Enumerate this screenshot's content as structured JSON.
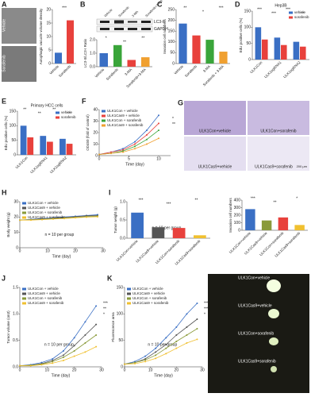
{
  "chart_data": [
    {
      "panel": "A",
      "type": "bar",
      "categories": [
        "Vehicle",
        "Sorafenib"
      ],
      "values": [
        4,
        16
      ],
      "colors": [
        "#3a6fc4",
        "#e8413c"
      ],
      "ylabel": "Autophagic vacuole volume density",
      "ylim": [
        0,
        20
      ],
      "yticks": [
        0,
        5,
        10,
        15,
        20
      ],
      "annotations": [
        "***"
      ]
    },
    {
      "panel": "B",
      "type": "bar",
      "categories": [
        "Vehicle",
        "Sorafenib",
        "3-MA",
        "Sorafenib+3-MA"
      ],
      "values": [
        1.0,
        1.6,
        0.5,
        0.7
      ],
      "colors": [
        "#3a6fc4",
        "#3aa53a",
        "#e8413c",
        "#f0a030"
      ],
      "ylabel": "LC3-II/LC3-I Ratio",
      "ylim": [
        0,
        2
      ],
      "yticks": [
        {
          "value": 0,
          "label": "0.0"
        },
        {
          "value": 1,
          "label": "1.0"
        },
        {
          "value": 2,
          "label": "2.0"
        }
      ],
      "annotations": [
        "*",
        "**",
        "**"
      ]
    },
    {
      "panel": "C",
      "type": "bar",
      "categories": [
        "Vehicle",
        "Sorafenib",
        "3-MA",
        "Sorafenib + 3-MA"
      ],
      "values": [
        185,
        130,
        110,
        55
      ],
      "colors": [
        "#3a6fc4",
        "#e8413c",
        "#3aa53a",
        "#f0a030"
      ],
      "ylabel": "Invasion cell numbers",
      "ylim": [
        0,
        250
      ],
      "yticks": [
        0,
        50,
        100,
        150,
        200,
        250
      ],
      "annotations": [
        "**",
        "*",
        "***"
      ]
    },
    {
      "panel": "D",
      "type": "grouped_bar",
      "title": "Hep3B",
      "categories": [
        "ULK1Con",
        "ULK1sgRNA1",
        "ULK1sgRNA2"
      ],
      "series": [
        {
          "name": "vehicle",
          "color": "#3a6fc4",
          "values": [
            100,
            68,
            55
          ]
        },
        {
          "name": "sorafenib",
          "color": "#e8413c",
          "values": [
            62,
            45,
            40
          ]
        }
      ],
      "ylabel": "EdU positive cells (%)",
      "ylim": [
        0,
        150
      ],
      "yticks": [
        0,
        50,
        100,
        150
      ],
      "legend": "upper right",
      "annotations": [
        "***",
        "***",
        "***",
        "**"
      ]
    },
    {
      "panel": "E",
      "type": "grouped_bar",
      "title": "Primary HCC cells",
      "categories": [
        "ULK1Con",
        "ULK1sgRNA1",
        "ULK1sgRNA2"
      ],
      "series": [
        {
          "name": "vehicle",
          "color": "#3a6fc4",
          "values": [
            100,
            65,
            55
          ]
        },
        {
          "name": "sorafenib",
          "color": "#e8413c",
          "values": [
            60,
            45,
            38
          ]
        }
      ],
      "ylabel": "EdU positive cells (%)",
      "ylim": [
        0,
        150
      ],
      "yticks": [
        0,
        50,
        100,
        150
      ],
      "legend": "upper right",
      "annotations": [
        "**",
        "**",
        "**",
        "**"
      ]
    },
    {
      "panel": "F",
      "type": "line",
      "x": [
        0,
        2,
        4,
        6,
        8,
        10
      ],
      "series": [
        {
          "name": "ULK1Con + vehicle",
          "color": "#3a6fc4",
          "values": [
            1,
            3,
            6,
            12,
            22,
            35
          ]
        },
        {
          "name": "ULK1Cas9 + vehicle",
          "color": "#e8413c",
          "values": [
            1,
            3,
            5,
            10,
            18,
            28
          ]
        },
        {
          "name": "ULK1Con + sorafenib",
          "color": "#3aa53a",
          "values": [
            1,
            2,
            4,
            8,
            14,
            22
          ]
        },
        {
          "name": "ULK1Cas9 + sorafenib",
          "color": "#f0a030",
          "values": [
            1,
            2,
            3,
            6,
            10,
            15
          ]
        }
      ],
      "xlabel": "Time (day)",
      "ylabel": "OD450 (fold of control)",
      "xlim": [
        0,
        12
      ],
      "xticks": [
        0,
        5,
        10
      ],
      "ylim": [
        0,
        40
      ],
      "yticks": [
        0,
        10,
        20,
        30,
        40
      ],
      "legend": "upper left",
      "annotations": [
        "*",
        "**"
      ]
    },
    {
      "panel": "H",
      "type": "line",
      "x": [
        0,
        4,
        8,
        12,
        16,
        20,
        24,
        28
      ],
      "series": [
        {
          "name": "ULK1Con + vehicle",
          "color": "#3a6fc4",
          "values": [
            18,
            18.5,
            19,
            19.5,
            20,
            20.5,
            21,
            21.5
          ]
        },
        {
          "name": "ULK1Cas9 + vehicle",
          "color": "#555555",
          "values": [
            18,
            18.3,
            18.8,
            19.2,
            19.8,
            20.2,
            20.8,
            21
          ]
        },
        {
          "name": "ULK1Con + sorafenib",
          "color": "#8a9a3a",
          "values": [
            18,
            18.2,
            18.5,
            19,
            19.4,
            19.8,
            20.3,
            20.6
          ]
        },
        {
          "name": "ULK1Cas9 + sorafenib",
          "color": "#f0c030",
          "values": [
            18,
            18,
            18.3,
            18.7,
            19,
            19.5,
            19.9,
            20.2
          ]
        }
      ],
      "xlabel": "Time (day)",
      "ylabel": "Body weight (g)",
      "xlim": [
        0,
        30
      ],
      "xticks": [
        0,
        10,
        20,
        30
      ],
      "ylim": [
        0,
        30
      ],
      "yticks": [
        0,
        10,
        20,
        30
      ],
      "legend": "upper left",
      "note": "n = 10 per group"
    },
    {
      "panel": "I",
      "type": "bar",
      "categories": [
        "ULK1Con+vehicle",
        "ULK1Cas9+vehicle",
        "ULK1Con+sorafenib",
        "ULK1Cas9+sorafenib"
      ],
      "values": [
        0.7,
        0.3,
        0.28,
        0.08
      ],
      "colors": [
        "#3a6fc4",
        "#555555",
        "#e8413c",
        "#f0c030"
      ],
      "ylabel": "Tumor weight (g)",
      "ylim": [
        0,
        1
      ],
      "yticks": [
        {
          "value": 0,
          "label": "0.0"
        },
        {
          "value": 0.5,
          "label": "0.5"
        },
        {
          "value": 1,
          "label": "1.0"
        }
      ],
      "note": "n = 10 per group",
      "annotations": [
        "***",
        "***",
        "**"
      ]
    },
    {
      "type": "bar",
      "categories": [
        "ULK1Con+vehicle",
        "ULK1Cas9+vehicle",
        "ULK1Con+sorafenib",
        "ULK1Cas9+sorafenib"
      ],
      "values": [
        280,
        130,
        170,
        70
      ],
      "colors": [
        "#3a6fc4",
        "#8a9a3a",
        "#e8413c",
        "#f0c030"
      ],
      "ylabel": "Invasion cell numbers",
      "ylim": [
        0,
        400
      ],
      "yticks": [
        0,
        100,
        200,
        300,
        400
      ],
      "annotations": [
        "***",
        "**",
        "*"
      ]
    },
    {
      "panel": "J",
      "type": "line",
      "x": [
        0,
        4,
        8,
        12,
        16,
        20,
        24,
        28
      ],
      "series": [
        {
          "name": "ULK1Con + vehicle",
          "color": "#3a6fc4",
          "values": [
            0.02,
            0.04,
            0.08,
            0.15,
            0.3,
            0.55,
            0.85,
            1.15
          ]
        },
        {
          "name": "ULK1Cas9 + vehicle",
          "color": "#555555",
          "values": [
            0.02,
            0.03,
            0.06,
            0.12,
            0.22,
            0.4,
            0.6,
            0.8
          ]
        },
        {
          "name": "ULK1Con + sorafenib",
          "color": "#8a9a3a",
          "values": [
            0.02,
            0.03,
            0.05,
            0.1,
            0.18,
            0.3,
            0.45,
            0.6
          ]
        },
        {
          "name": "ULK1Cas9 + sorafenib",
          "color": "#f0c030",
          "values": [
            0.02,
            0.02,
            0.04,
            0.07,
            0.12,
            0.2,
            0.28,
            0.38
          ]
        }
      ],
      "xlabel": "Time (day)",
      "ylabel": "Tumor volume (cm3)",
      "xlim": [
        0,
        30
      ],
      "xticks": [
        0,
        10,
        20,
        30
      ],
      "ylim": [
        0,
        1.5
      ],
      "yticks": [
        {
          "value": 0,
          "label": "0.0"
        },
        {
          "value": 0.5,
          "label": "0.5"
        },
        {
          "value": 1,
          "label": "1.0"
        },
        {
          "value": 1.5,
          "label": "1.5"
        }
      ],
      "legend": "upper left",
      "note": "n = 10 per group",
      "annotations": [
        "***",
        "**",
        "*"
      ]
    },
    {
      "panel": "K",
      "type": "line",
      "x": [
        0,
        4,
        8,
        12,
        16,
        20,
        24,
        28
      ],
      "series": [
        {
          "name": "ULK1Con + vehicle",
          "color": "#3a6fc4",
          "values": [
            5,
            10,
            20,
            35,
            55,
            75,
            100,
            120
          ]
        },
        {
          "name": "ULK1Cas9 + vehicle",
          "color": "#555555",
          "values": [
            5,
            8,
            15,
            28,
            42,
            60,
            75,
            90
          ]
        },
        {
          "name": "ULK1Con + sorafenib",
          "color": "#8a9a3a",
          "values": [
            5,
            8,
            13,
            22,
            35,
            48,
            60,
            72
          ]
        },
        {
          "name": "ULK1Cas9 + sorafenib",
          "color": "#f0c030",
          "values": [
            5,
            6,
            10,
            16,
            25,
            35,
            45,
            52
          ]
        }
      ],
      "xlabel": "Time (day)",
      "ylabel": "Fluorescence area",
      "xlim": [
        0,
        30
      ],
      "xticks": [
        0,
        10,
        20,
        30
      ],
      "ylim": [
        0,
        150
      ],
      "yticks": [
        0,
        50,
        100,
        150
      ],
      "legend": "upper left",
      "note": "n = 10 per group",
      "annotations": [
        "***",
        "***",
        "*"
      ]
    }
  ],
  "micrographs": {
    "labels": [
      "Vehicle",
      "Sorafenib"
    ]
  },
  "blot": {
    "rows": [
      "LC3-II",
      "GAPDH"
    ]
  },
  "panel_G": {
    "panel": "G",
    "labels": [
      "ULK1Con+vehicle",
      "ULK1Con+sorafenib",
      "ULK1Cas9+vehicle",
      "ULK1Cas9+sorafenib"
    ],
    "scale": "200 μm"
  },
  "photo": {
    "labels": [
      "ULK1Con+vehicle",
      "ULK1Cas9+vehicle",
      "ULK1Con+sorafenib",
      "ULK1Cas9+sorafenib"
    ]
  }
}
